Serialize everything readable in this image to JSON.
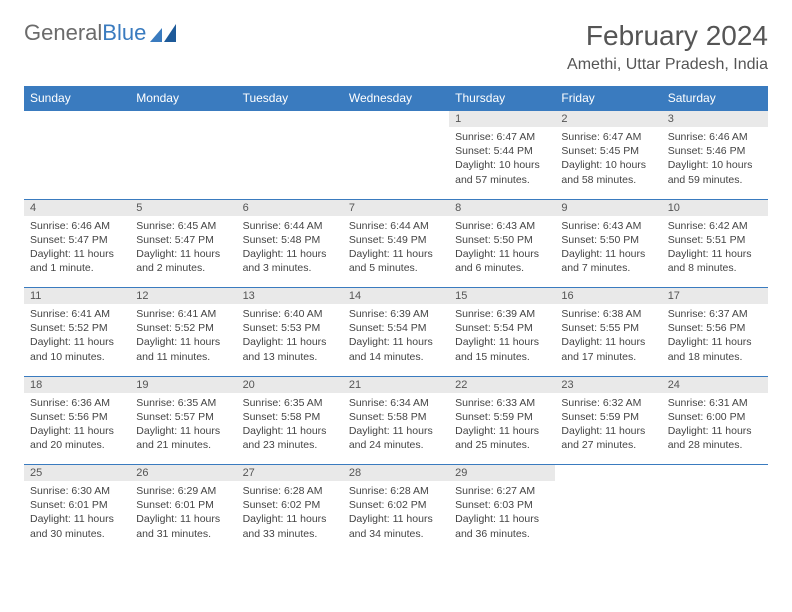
{
  "brand": {
    "part1": "General",
    "part2": "Blue"
  },
  "title": "February 2024",
  "location": "Amethi, Uttar Pradesh, India",
  "colors": {
    "header_bg": "#3a7bbf",
    "daynum_bg": "#e9e9e9",
    "text": "#555555",
    "cell_text": "#444444",
    "row_border": "#3a7bbf",
    "bg": "#ffffff"
  },
  "weekdays": [
    "Sunday",
    "Monday",
    "Tuesday",
    "Wednesday",
    "Thursday",
    "Friday",
    "Saturday"
  ],
  "weeks": [
    {
      "nums": [
        "",
        "",
        "",
        "",
        "1",
        "2",
        "3"
      ],
      "cells": [
        null,
        null,
        null,
        null,
        {
          "sunrise": "Sunrise: 6:47 AM",
          "sunset": "Sunset: 5:44 PM",
          "day1": "Daylight: 10 hours",
          "day2": "and 57 minutes."
        },
        {
          "sunrise": "Sunrise: 6:47 AM",
          "sunset": "Sunset: 5:45 PM",
          "day1": "Daylight: 10 hours",
          "day2": "and 58 minutes."
        },
        {
          "sunrise": "Sunrise: 6:46 AM",
          "sunset": "Sunset: 5:46 PM",
          "day1": "Daylight: 10 hours",
          "day2": "and 59 minutes."
        }
      ]
    },
    {
      "nums": [
        "4",
        "5",
        "6",
        "7",
        "8",
        "9",
        "10"
      ],
      "cells": [
        {
          "sunrise": "Sunrise: 6:46 AM",
          "sunset": "Sunset: 5:47 PM",
          "day1": "Daylight: 11 hours",
          "day2": "and 1 minute."
        },
        {
          "sunrise": "Sunrise: 6:45 AM",
          "sunset": "Sunset: 5:47 PM",
          "day1": "Daylight: 11 hours",
          "day2": "and 2 minutes."
        },
        {
          "sunrise": "Sunrise: 6:44 AM",
          "sunset": "Sunset: 5:48 PM",
          "day1": "Daylight: 11 hours",
          "day2": "and 3 minutes."
        },
        {
          "sunrise": "Sunrise: 6:44 AM",
          "sunset": "Sunset: 5:49 PM",
          "day1": "Daylight: 11 hours",
          "day2": "and 5 minutes."
        },
        {
          "sunrise": "Sunrise: 6:43 AM",
          "sunset": "Sunset: 5:50 PM",
          "day1": "Daylight: 11 hours",
          "day2": "and 6 minutes."
        },
        {
          "sunrise": "Sunrise: 6:43 AM",
          "sunset": "Sunset: 5:50 PM",
          "day1": "Daylight: 11 hours",
          "day2": "and 7 minutes."
        },
        {
          "sunrise": "Sunrise: 6:42 AM",
          "sunset": "Sunset: 5:51 PM",
          "day1": "Daylight: 11 hours",
          "day2": "and 8 minutes."
        }
      ]
    },
    {
      "nums": [
        "11",
        "12",
        "13",
        "14",
        "15",
        "16",
        "17"
      ],
      "cells": [
        {
          "sunrise": "Sunrise: 6:41 AM",
          "sunset": "Sunset: 5:52 PM",
          "day1": "Daylight: 11 hours",
          "day2": "and 10 minutes."
        },
        {
          "sunrise": "Sunrise: 6:41 AM",
          "sunset": "Sunset: 5:52 PM",
          "day1": "Daylight: 11 hours",
          "day2": "and 11 minutes."
        },
        {
          "sunrise": "Sunrise: 6:40 AM",
          "sunset": "Sunset: 5:53 PM",
          "day1": "Daylight: 11 hours",
          "day2": "and 13 minutes."
        },
        {
          "sunrise": "Sunrise: 6:39 AM",
          "sunset": "Sunset: 5:54 PM",
          "day1": "Daylight: 11 hours",
          "day2": "and 14 minutes."
        },
        {
          "sunrise": "Sunrise: 6:39 AM",
          "sunset": "Sunset: 5:54 PM",
          "day1": "Daylight: 11 hours",
          "day2": "and 15 minutes."
        },
        {
          "sunrise": "Sunrise: 6:38 AM",
          "sunset": "Sunset: 5:55 PM",
          "day1": "Daylight: 11 hours",
          "day2": "and 17 minutes."
        },
        {
          "sunrise": "Sunrise: 6:37 AM",
          "sunset": "Sunset: 5:56 PM",
          "day1": "Daylight: 11 hours",
          "day2": "and 18 minutes."
        }
      ]
    },
    {
      "nums": [
        "18",
        "19",
        "20",
        "21",
        "22",
        "23",
        "24"
      ],
      "cells": [
        {
          "sunrise": "Sunrise: 6:36 AM",
          "sunset": "Sunset: 5:56 PM",
          "day1": "Daylight: 11 hours",
          "day2": "and 20 minutes."
        },
        {
          "sunrise": "Sunrise: 6:35 AM",
          "sunset": "Sunset: 5:57 PM",
          "day1": "Daylight: 11 hours",
          "day2": "and 21 minutes."
        },
        {
          "sunrise": "Sunrise: 6:35 AM",
          "sunset": "Sunset: 5:58 PM",
          "day1": "Daylight: 11 hours",
          "day2": "and 23 minutes."
        },
        {
          "sunrise": "Sunrise: 6:34 AM",
          "sunset": "Sunset: 5:58 PM",
          "day1": "Daylight: 11 hours",
          "day2": "and 24 minutes."
        },
        {
          "sunrise": "Sunrise: 6:33 AM",
          "sunset": "Sunset: 5:59 PM",
          "day1": "Daylight: 11 hours",
          "day2": "and 25 minutes."
        },
        {
          "sunrise": "Sunrise: 6:32 AM",
          "sunset": "Sunset: 5:59 PM",
          "day1": "Daylight: 11 hours",
          "day2": "and 27 minutes."
        },
        {
          "sunrise": "Sunrise: 6:31 AM",
          "sunset": "Sunset: 6:00 PM",
          "day1": "Daylight: 11 hours",
          "day2": "and 28 minutes."
        }
      ]
    },
    {
      "nums": [
        "25",
        "26",
        "27",
        "28",
        "29",
        "",
        ""
      ],
      "cells": [
        {
          "sunrise": "Sunrise: 6:30 AM",
          "sunset": "Sunset: 6:01 PM",
          "day1": "Daylight: 11 hours",
          "day2": "and 30 minutes."
        },
        {
          "sunrise": "Sunrise: 6:29 AM",
          "sunset": "Sunset: 6:01 PM",
          "day1": "Daylight: 11 hours",
          "day2": "and 31 minutes."
        },
        {
          "sunrise": "Sunrise: 6:28 AM",
          "sunset": "Sunset: 6:02 PM",
          "day1": "Daylight: 11 hours",
          "day2": "and 33 minutes."
        },
        {
          "sunrise": "Sunrise: 6:28 AM",
          "sunset": "Sunset: 6:02 PM",
          "day1": "Daylight: 11 hours",
          "day2": "and 34 minutes."
        },
        {
          "sunrise": "Sunrise: 6:27 AM",
          "sunset": "Sunset: 6:03 PM",
          "day1": "Daylight: 11 hours",
          "day2": "and 36 minutes."
        },
        null,
        null
      ]
    }
  ]
}
